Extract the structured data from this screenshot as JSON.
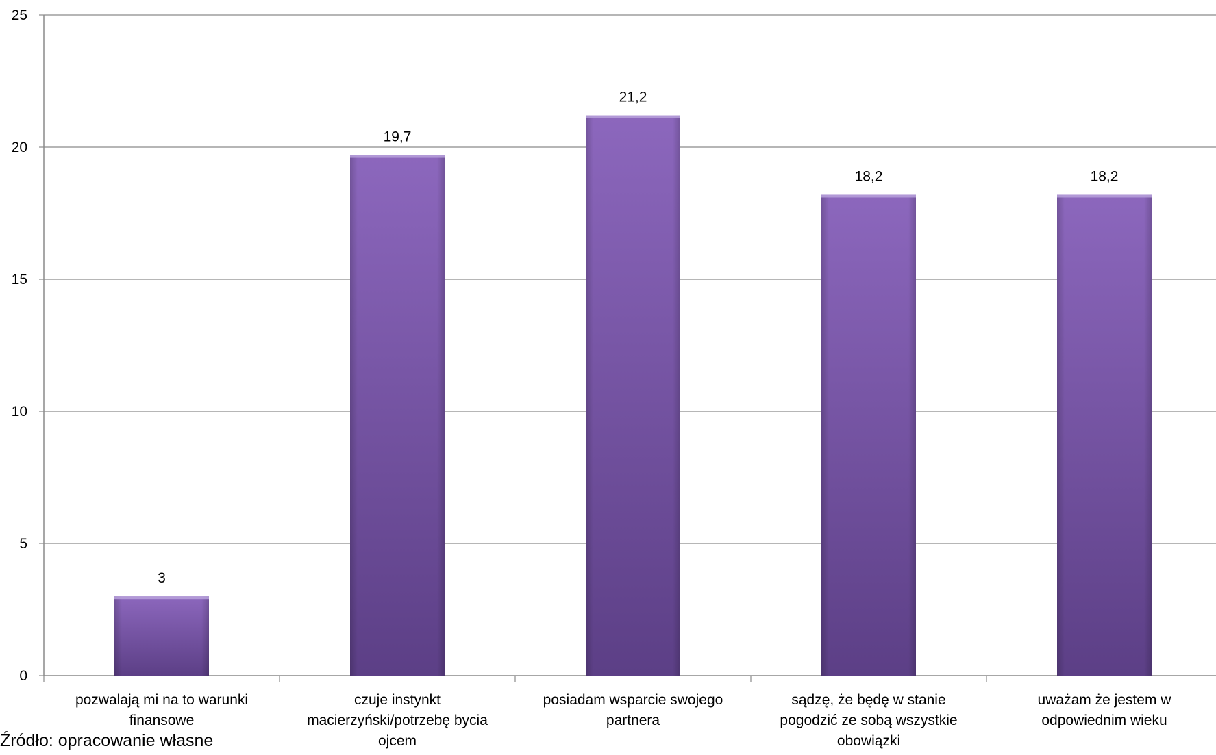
{
  "chart_data": {
    "type": "bar",
    "categories": [
      [
        "pozwalają mi na to warunki",
        "finansowe"
      ],
      [
        "czuje instynkt",
        "macierzyński/potrzebę bycia",
        "ojcem"
      ],
      [
        "posiadam wsparcie swojego",
        "partnera"
      ],
      [
        "sądzę, że będę w stanie",
        "pogodzić ze sobą wszystkie",
        "obowiązki"
      ],
      [
        "uważam że jestem w",
        "odpowiednim wieku"
      ]
    ],
    "values": [
      3,
      19.7,
      21.2,
      18.2,
      18.2
    ],
    "value_labels": [
      "3",
      "19,7",
      "21,2",
      "18,2",
      "18,2"
    ],
    "ylim": [
      0,
      25
    ],
    "yticks": [
      0,
      5,
      10,
      15,
      20,
      25
    ],
    "grid": true,
    "legend": "none",
    "bar_color_top": "#8c67bd",
    "bar_color_bottom": "#5c3f86"
  },
  "source_note": "Źródło: opracowanie własne"
}
